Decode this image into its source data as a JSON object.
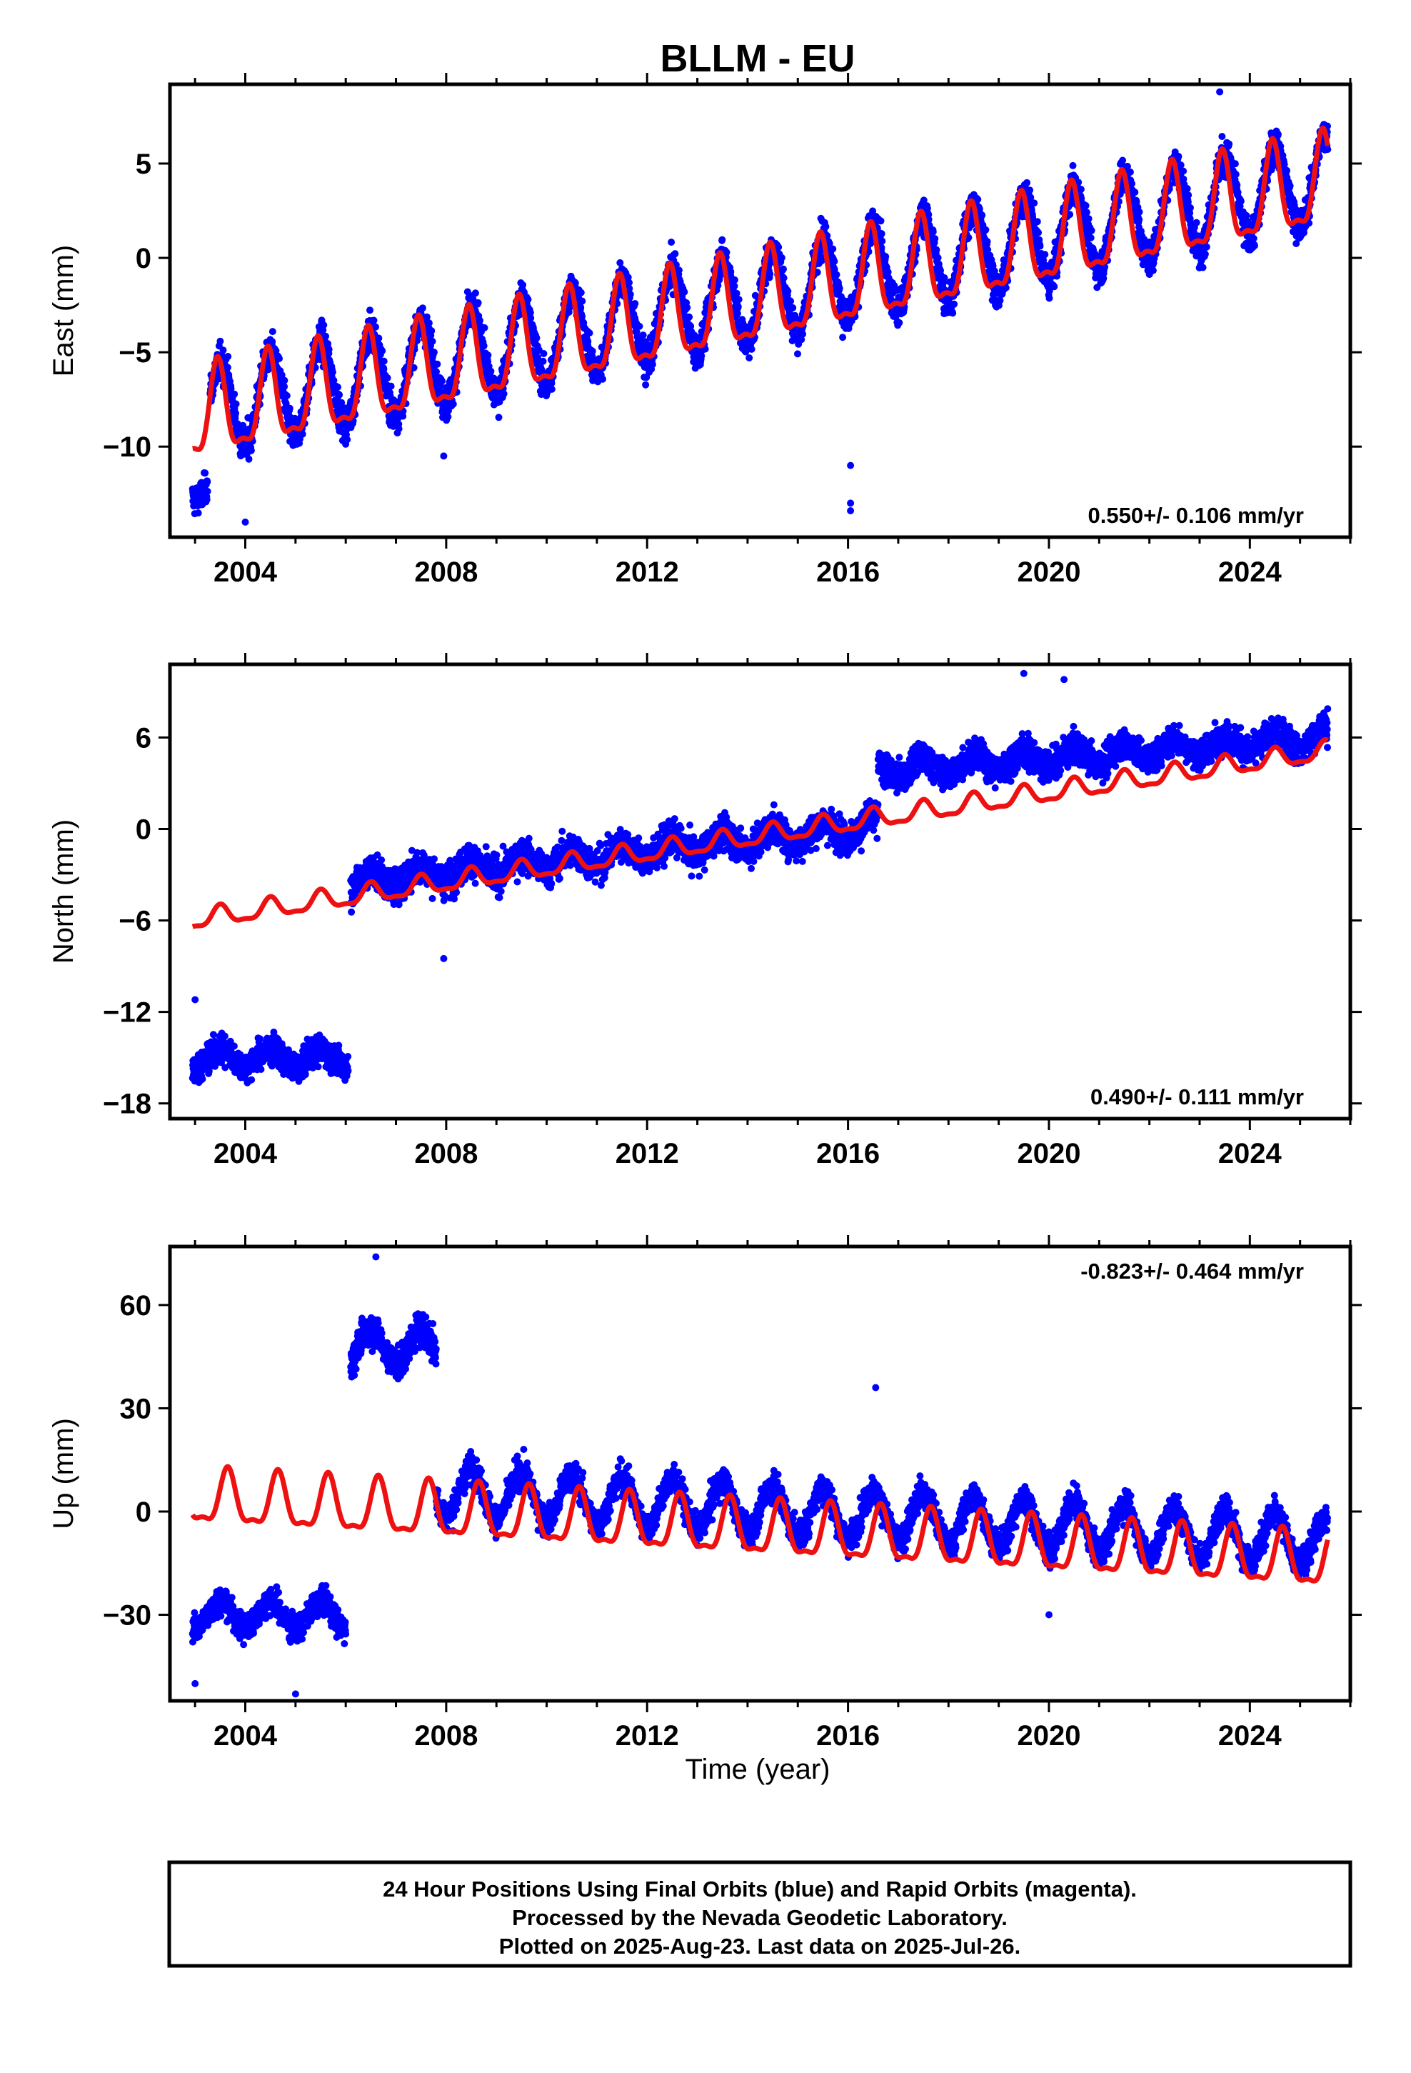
{
  "figure_title": "BLLM - EU",
  "xlabel": "Time (year)",
  "footer": {
    "lines": [
      "24 Hour Positions Using Final Orbits (blue) and Rapid Orbits (magenta).",
      "Processed by the Nevada Geodetic Laboratory.",
      "Plotted on 2025-Aug-23. Last data on 2025-Jul-26."
    ]
  },
  "colors": {
    "observations": "#0000ff",
    "model": "#ee1111",
    "frame": "#000000"
  },
  "chart_data": [
    {
      "type": "scatter",
      "title": "BLLM - EU",
      "ylabel": "East (mm)",
      "xlabel": "",
      "xlim": [
        2002.5,
        2026.0
      ],
      "ylim": [
        -14.8,
        9.2
      ],
      "xticks": [
        2004,
        2008,
        2012,
        2016,
        2020,
        2024
      ],
      "yticks": [
        5,
        0,
        -5,
        -10
      ],
      "ytick_labels": [
        "5",
        "0",
        "−5",
        "−10"
      ],
      "rate_text": "0.550+/- 0.106 mm/yr",
      "rate_position": "bottom-right",
      "grid": false,
      "series": [
        {
          "role": "observations",
          "color": "#0000ff",
          "segments": [
            {
              "x0": 2002.95,
              "x1": 2003.25,
              "trend": -12.0,
              "amp": 0.8,
              "noise": 1.0
            },
            {
              "x0": 2003.3,
              "x1": 2025.55,
              "trend0": -8.0,
              "rate": 0.55,
              "amp": 2.3,
              "noise": 1.2
            }
          ],
          "outliers": [
            [
              2004.0,
              -14.0
            ],
            [
              2016.05,
              -11.0
            ],
            [
              2016.05,
              -13.0
            ],
            [
              2016.05,
              -13.4
            ],
            [
              2007.95,
              -10.5
            ],
            [
              2023.4,
              8.8
            ]
          ]
        },
        {
          "role": "model",
          "type": "line",
          "color": "#ee1111",
          "x_range": [
            2002.95,
            2025.55
          ],
          "start": -8.6,
          "rate": 0.55,
          "amp": 2.3,
          "phase_peak": 0.45
        }
      ]
    },
    {
      "type": "scatter",
      "ylabel": "North (mm)",
      "xlabel": "",
      "xlim": [
        2002.5,
        2026.0
      ],
      "ylim": [
        -19.0,
        10.8
      ],
      "xticks": [
        2004,
        2008,
        2012,
        2016,
        2020,
        2024
      ],
      "yticks": [
        6,
        0,
        -6,
        -12,
        -18
      ],
      "ytick_labels": [
        "6",
        "0",
        "−6",
        "−12",
        "−18"
      ],
      "rate_text": "0.490+/- 0.111 mm/yr",
      "rate_position": "bottom-right",
      "grid": false,
      "series": [
        {
          "role": "observations",
          "color": "#0000ff",
          "segments": [
            {
              "x0": 2002.95,
              "x1": 2006.05,
              "trend": -15.0,
              "amp": 0.6,
              "noise": 1.2
            },
            {
              "x0": 2006.1,
              "x1": 2016.6,
              "trend0": -3.5,
              "rate": 0.35,
              "amp": 0.6,
              "noise": 1.4
            },
            {
              "x0": 2016.6,
              "x1": 2025.55,
              "trend0": 3.8,
              "rate": 0.25,
              "amp": 0.6,
              "noise": 1.3
            }
          ],
          "outliers": [
            [
              2007.95,
              -8.5
            ],
            [
              2019.5,
              10.2
            ],
            [
              2020.3,
              9.8
            ],
            [
              2003.0,
              -11.2
            ]
          ]
        },
        {
          "role": "model",
          "type": "line",
          "color": "#ee1111",
          "x_range": [
            2002.95,
            2025.55
          ],
          "start": -6.0,
          "rate": 0.49,
          "amp": 0.6,
          "phase_peak": 0.5
        }
      ]
    },
    {
      "type": "scatter",
      "ylabel": "Up (mm)",
      "xlabel": "Time (year)",
      "xlim": [
        2002.5,
        2026.0
      ],
      "ylim": [
        -55.0,
        77.0
      ],
      "xticks": [
        2004,
        2008,
        2012,
        2016,
        2020,
        2024
      ],
      "yticks": [
        60,
        30,
        0,
        -30
      ],
      "ytick_labels": [
        "60",
        "30",
        "0",
        "−30"
      ],
      "rate_text": "-0.823+/- 0.464 mm/yr",
      "rate_position": "top-right",
      "grid": false,
      "series": [
        {
          "role": "observations",
          "color": "#0000ff",
          "segments": [
            {
              "x0": 2002.95,
              "x1": 2006.0,
              "trend": -30.0,
              "amp": 4.0,
              "noise": 5.0
            },
            {
              "x0": 2006.1,
              "x1": 2007.8,
              "trend": 48.0,
              "amp": 5.0,
              "noise": 6.0
            },
            {
              "x0": 2007.8,
              "x1": 2025.55,
              "trend0": 6.0,
              "rate": -0.823,
              "amp": 7.0,
              "noise": 5.5
            }
          ],
          "outliers": [
            [
              2003.0,
              -50.0
            ],
            [
              2005.0,
              -53.0
            ],
            [
              2006.6,
              74.0
            ],
            [
              2016.55,
              36.0
            ],
            [
              2020.0,
              -30.0
            ]
          ]
        },
        {
          "role": "model",
          "type": "line",
          "color": "#ee1111",
          "x_range": [
            2002.95,
            2025.55
          ],
          "start": 3.5,
          "rate": -0.823,
          "amp": 7.5,
          "phase_peak": 0.65
        }
      ]
    }
  ]
}
